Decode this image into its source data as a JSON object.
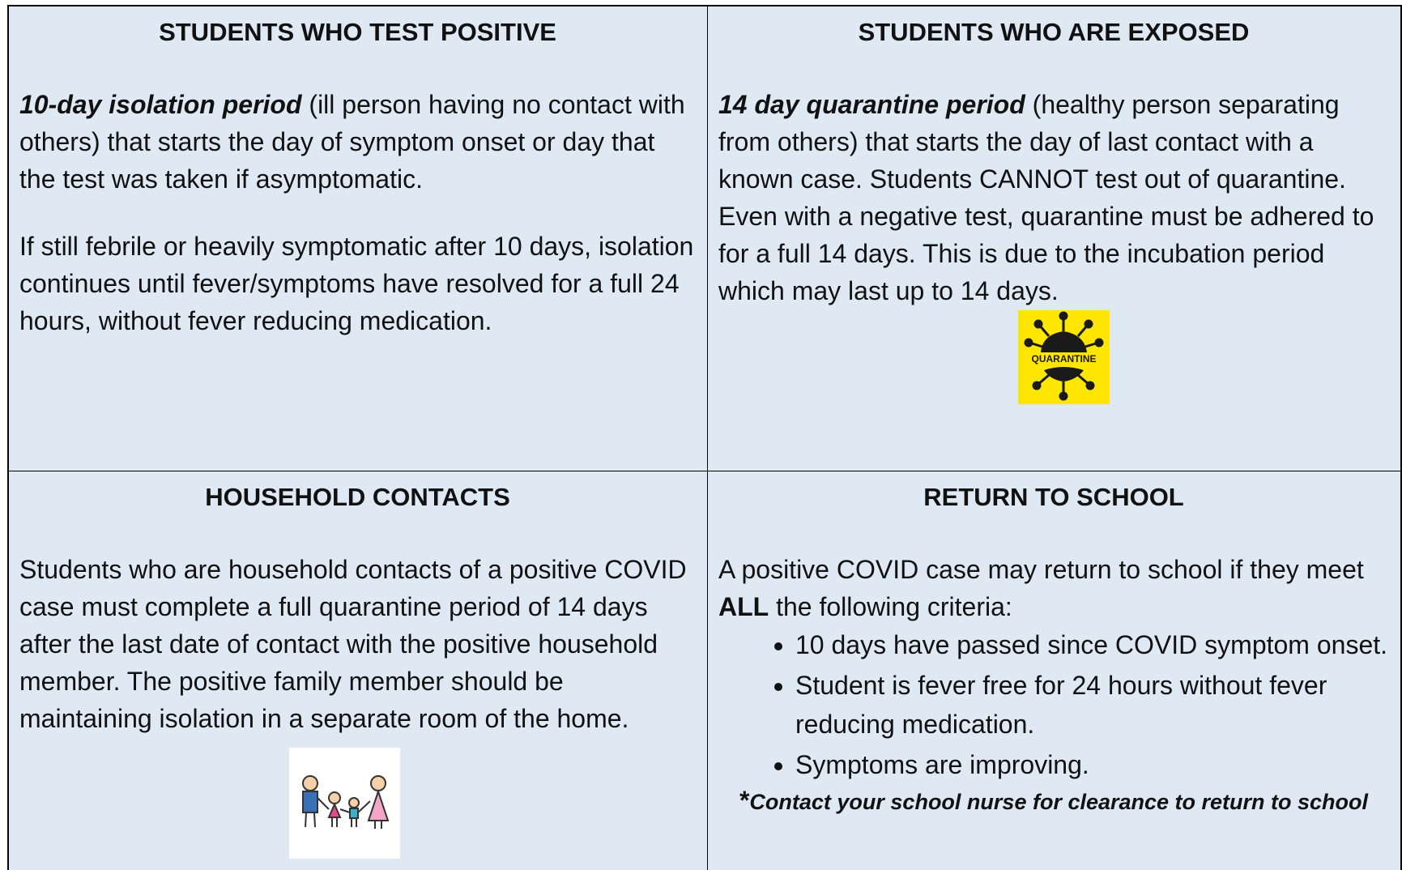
{
  "cells": [
    {
      "title": "STUDENTS WHO TEST POSITIVE",
      "paragraphs": [
        {
          "emphasis": "10-day isolation period",
          "text": " (ill person having no contact with others) that starts the day of symptom onset or day that the test was taken if asymptomatic."
        },
        {
          "text": "If still febrile or heavily symptomatic after 10 days, isolation continues until fever/symptoms have resolved for a full 24 hours, without fever reducing medication."
        }
      ]
    },
    {
      "title": "STUDENTS WHO ARE EXPOSED",
      "paragraphs": [
        {
          "emphasis": "14 day quarantine period",
          "text": " (healthy person separating from others) that starts the day of last contact with a known case.  Students CANNOT test out of quarantine.  Even with a negative test, quarantine must be adhered to for a full 14 days.  This is due to the incubation period which may last up to 14 days."
        }
      ],
      "image_label": "QUARANTINE"
    },
    {
      "title": "HOUSEHOLD CONTACTS",
      "paragraphs": [
        {
          "text": "Students who are household contacts of a positive COVID case must complete a full quarantine period of 14 days after the last date of contact with the positive household member. The positive family member should be maintaining isolation in a separate room of the home."
        }
      ]
    },
    {
      "title": "RETURN TO SCHOOL",
      "intro": {
        "before": "A positive COVID case may return to school if they meet ",
        "bold": "ALL",
        "after": " the following criteria:"
      },
      "bullets": [
        "10 days have passed since COVID symptom onset.",
        "Student is fever free for 24 hours without fever reducing medication.",
        "Symptoms are improving."
      ],
      "note": {
        "star": "*",
        "text": "Contact your school nurse for clearance to return to school"
      }
    }
  ]
}
